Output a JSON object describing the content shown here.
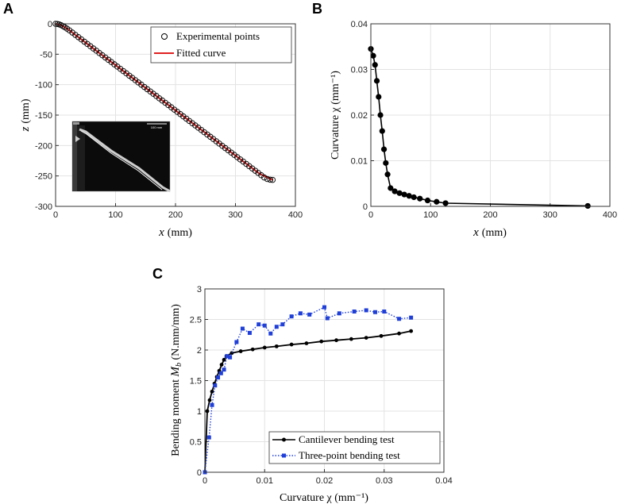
{
  "panels": {
    "A": "A",
    "B": "B",
    "C": "C"
  },
  "chart_data": [
    {
      "id": "A",
      "type": "scatter",
      "xlabel_var": "x",
      "xlabel_unit": "(mm)",
      "ylabel_var": "z",
      "ylabel_unit": "(mm)",
      "xlim": [
        0,
        400
      ],
      "ylim": [
        -300,
        0
      ],
      "xticks": [
        0,
        100,
        200,
        300,
        400
      ],
      "yticks": [
        0,
        -50,
        -100,
        -150,
        -200,
        -250,
        -300
      ],
      "grid": true,
      "legend_position": "top-right",
      "inset_label": "100 mm",
      "colors": {
        "points": "#000000",
        "curve": "#e02020"
      },
      "series": [
        {
          "name": "Experimental points",
          "style": "circles",
          "x": [
            0,
            3,
            6,
            9,
            12,
            15,
            19,
            23,
            28,
            33,
            38,
            43,
            48,
            53,
            58,
            63,
            68,
            73,
            78,
            83,
            88,
            93,
            98,
            103,
            108,
            113,
            118,
            123,
            128,
            133,
            138,
            143,
            148,
            153,
            158,
            163,
            168,
            173,
            178,
            183,
            188,
            193,
            198,
            203,
            208,
            213,
            218,
            223,
            228,
            233,
            238,
            243,
            248,
            253,
            258,
            263,
            268,
            273,
            278,
            283,
            288,
            293,
            298,
            303,
            308,
            313,
            318,
            323,
            328,
            333,
            338,
            343,
            348,
            353,
            358,
            362
          ],
          "y": [
            0,
            -0.3,
            -1.0,
            -2.1,
            -3.6,
            -5.4,
            -7.9,
            -10.7,
            -14.4,
            -18.2,
            -21.9,
            -25.6,
            -29.4,
            -33.1,
            -36.8,
            -40.5,
            -44.2,
            -48.0,
            -51.7,
            -55.4,
            -59.1,
            -62.8,
            -66.6,
            -70.3,
            -74.0,
            -77.7,
            -81.4,
            -85.2,
            -88.9,
            -92.6,
            -96.3,
            -100.0,
            -103.8,
            -107.5,
            -111.2,
            -114.9,
            -118.6,
            -122.4,
            -126.1,
            -129.8,
            -133.5,
            -137.2,
            -141.0,
            -144.7,
            -148.4,
            -152.1,
            -155.8,
            -159.6,
            -163.3,
            -167.0,
            -170.7,
            -174.4,
            -178.2,
            -181.9,
            -185.6,
            -189.3,
            -193.0,
            -196.8,
            -200.5,
            -204.2,
            -207.9,
            -211.6,
            -215.4,
            -219.1,
            -222.8,
            -226.5,
            -230.2,
            -234.0,
            -237.7,
            -241.4,
            -245.1,
            -248.8,
            -252.6,
            -255.0,
            -256.2,
            -256.5
          ]
        },
        {
          "name": "Fitted curve",
          "style": "line",
          "x": [
            0,
            3,
            6,
            9,
            12,
            15,
            19,
            23,
            28,
            33,
            40,
            60,
            100,
            150,
            200,
            250,
            300,
            340,
            362
          ],
          "y": [
            0,
            -0.3,
            -1.0,
            -2.1,
            -3.6,
            -5.4,
            -7.9,
            -10.7,
            -14.4,
            -18.2,
            -23.4,
            -38.3,
            -68.0,
            -105.2,
            -142.3,
            -179.4,
            -216.5,
            -246.3,
            -256.5
          ]
        }
      ]
    },
    {
      "id": "B",
      "type": "line",
      "xlabel_var": "x",
      "xlabel_unit": "(mm)",
      "ylabel": "Curvature χ (mm⁻¹)",
      "xlim": [
        0,
        400
      ],
      "ylim": [
        0,
        0.04
      ],
      "xticks": [
        0,
        100,
        200,
        300,
        400
      ],
      "yticks": [
        0,
        0.01,
        0.02,
        0.03,
        0.04
      ],
      "grid": true,
      "colors": {
        "line": "#000000"
      },
      "x": [
        0,
        4,
        7,
        10,
        13,
        16,
        19,
        22,
        25,
        28,
        33,
        40,
        48,
        56,
        64,
        72,
        82,
        95,
        110,
        125,
        363
      ],
      "y": [
        0.0345,
        0.033,
        0.031,
        0.0275,
        0.024,
        0.02,
        0.0165,
        0.0125,
        0.0095,
        0.007,
        0.004,
        0.0033,
        0.0029,
        0.0026,
        0.0023,
        0.002,
        0.0017,
        0.0013,
        0.001,
        0.0007,
        0.0001
      ]
    },
    {
      "id": "C",
      "type": "line",
      "xlabel": "Curvature χ (mm⁻¹)",
      "ylabel_text": "Bending moment ",
      "ylabel_var": "M",
      "ylabel_sub": "b",
      "ylabel_unit": " (N.mm/mm)",
      "xlim": [
        0,
        0.04
      ],
      "ylim": [
        0,
        3
      ],
      "xticks": [
        0,
        0.01,
        0.02,
        0.03,
        0.04
      ],
      "yticks": [
        0,
        0.5,
        1,
        1.5,
        2,
        2.5,
        3
      ],
      "grid": true,
      "legend_position": "bottom-right",
      "series": [
        {
          "name": "Cantilever bending test",
          "color": "#000000",
          "style": "solid",
          "marker": "circle",
          "x": [
            0,
            0.0004,
            0.0008,
            0.0012,
            0.0016,
            0.002,
            0.0024,
            0.0028,
            0.0032,
            0.0036,
            0.0045,
            0.006,
            0.008,
            0.01,
            0.012,
            0.0145,
            0.017,
            0.0195,
            0.022,
            0.0245,
            0.027,
            0.0295,
            0.0325,
            0.0345
          ],
          "y": [
            0,
            1.0,
            1.18,
            1.32,
            1.45,
            1.56,
            1.66,
            1.76,
            1.84,
            1.9,
            1.95,
            1.98,
            2.01,
            2.04,
            2.06,
            2.09,
            2.11,
            2.14,
            2.16,
            2.18,
            2.2,
            2.23,
            2.27,
            2.31
          ]
        },
        {
          "name": "Three-point bending test",
          "color": "#1f3fd8",
          "style": "dotted",
          "marker": "square",
          "x": [
            0,
            0.0007,
            0.0012,
            0.0017,
            0.0022,
            0.0027,
            0.0032,
            0.0037,
            0.0042,
            0.0053,
            0.0063,
            0.0075,
            0.009,
            0.01,
            0.011,
            0.012,
            0.013,
            0.0145,
            0.016,
            0.0175,
            0.02,
            0.0205,
            0.0225,
            0.025,
            0.027,
            0.0285,
            0.03,
            0.0325,
            0.0345
          ],
          "y": [
            0,
            0.57,
            1.1,
            1.42,
            1.55,
            1.62,
            1.68,
            1.9,
            1.88,
            2.13,
            2.35,
            2.28,
            2.42,
            2.4,
            2.27,
            2.38,
            2.42,
            2.55,
            2.6,
            2.58,
            2.7,
            2.52,
            2.6,
            2.63,
            2.65,
            2.62,
            2.63,
            2.51,
            2.53
          ]
        }
      ]
    }
  ]
}
